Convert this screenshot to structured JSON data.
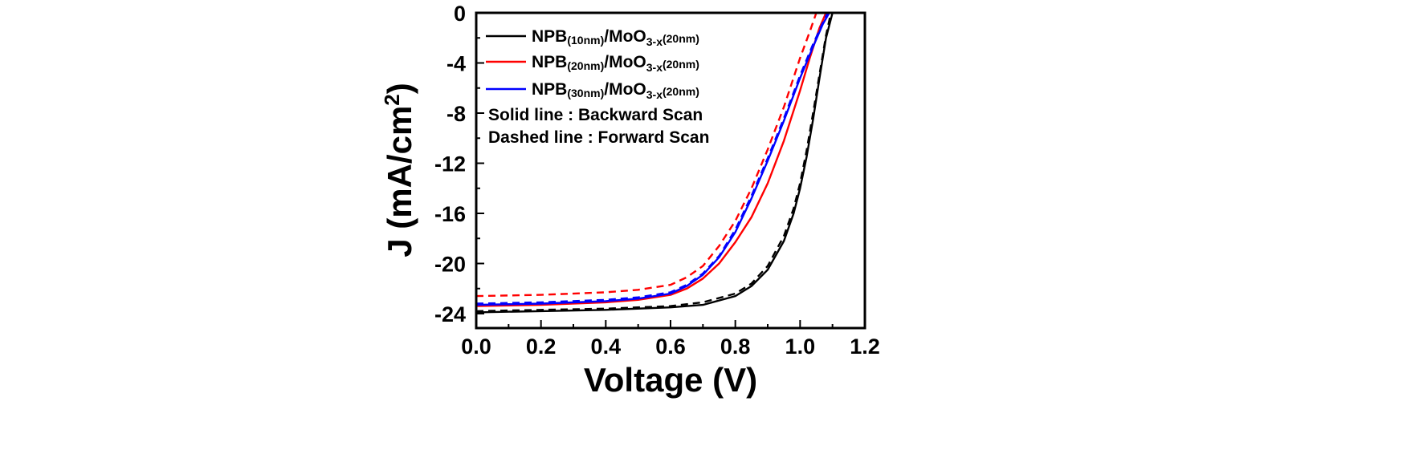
{
  "chart_data": {
    "type": "line",
    "xlabel": "Voltage (V)",
    "ylabel": {
      "main": "J (mA/cm",
      "sup": "2",
      "close": ")"
    },
    "xlim": [
      0.0,
      1.2
    ],
    "ylim": [
      -24.0,
      0.0
    ],
    "x_ticks": [
      "0.0",
      "0.2",
      "0.4",
      "0.6",
      "0.8",
      "1.0",
      "1.2"
    ],
    "y_ticks": [
      "0",
      "-4",
      "-8",
      "-12",
      "-16",
      "-20",
      "-24"
    ],
    "grid": false,
    "legend_position": "top-left",
    "notes": [
      "Solid line : Backward Scan",
      "Dashed line : Forward Scan"
    ],
    "series": [
      {
        "name": "NPB(10nm)/MoO3-x(20nm)",
        "label": {
          "a": "NPB",
          "b": "(10nm)",
          "c": "/MoO",
          "d": "3-x",
          "e": "(20nm)"
        },
        "color": "#000000",
        "backward": {
          "x": [
            0.0,
            0.2,
            0.4,
            0.6,
            0.7,
            0.8,
            0.85,
            0.9,
            0.95,
            0.98,
            1.0,
            1.02,
            1.04,
            1.06,
            1.08,
            1.1
          ],
          "y": [
            -23.9,
            -23.8,
            -23.7,
            -23.5,
            -23.3,
            -22.6,
            -21.8,
            -20.5,
            -18.2,
            -16.0,
            -14.0,
            -11.5,
            -8.5,
            -5.2,
            -2.0,
            0.0
          ]
        },
        "forward": {
          "x": [
            0.0,
            0.2,
            0.4,
            0.6,
            0.7,
            0.8,
            0.85,
            0.9,
            0.95,
            0.98,
            1.0,
            1.02,
            1.04,
            1.06,
            1.08,
            1.095
          ],
          "y": [
            -23.8,
            -23.7,
            -23.6,
            -23.4,
            -23.1,
            -22.4,
            -21.6,
            -20.2,
            -17.8,
            -15.6,
            -13.6,
            -11.0,
            -8.0,
            -4.9,
            -1.8,
            0.0
          ]
        }
      },
      {
        "name": "NPB(20nm)/MoO3-x(20nm)",
        "label": {
          "a": "NPB",
          "b": "(20nm)",
          "c": "/MoO",
          "d": "3-x",
          "e": "(20nm)"
        },
        "color": "#ff0000",
        "backward": {
          "x": [
            0.0,
            0.2,
            0.4,
            0.5,
            0.6,
            0.65,
            0.7,
            0.75,
            0.8,
            0.85,
            0.9,
            0.95,
            1.0,
            1.03,
            1.06,
            1.08
          ],
          "y": [
            -23.4,
            -23.3,
            -23.1,
            -22.9,
            -22.5,
            -22.0,
            -21.2,
            -20.0,
            -18.3,
            -16.3,
            -13.6,
            -10.2,
            -6.2,
            -3.6,
            -1.2,
            0.0
          ]
        },
        "forward": {
          "x": [
            0.0,
            0.2,
            0.4,
            0.5,
            0.6,
            0.65,
            0.7,
            0.75,
            0.8,
            0.85,
            0.9,
            0.95,
            1.0,
            1.03,
            1.05
          ],
          "y": [
            -22.6,
            -22.5,
            -22.3,
            -22.1,
            -21.7,
            -21.1,
            -20.2,
            -18.6,
            -16.6,
            -14.0,
            -10.9,
            -7.5,
            -3.6,
            -1.5,
            0.0
          ]
        }
      },
      {
        "name": "NPB(30nm)/MoO3-x(20nm)",
        "label": {
          "a": "NPB",
          "b": "(30nm)",
          "c": "/MoO",
          "d": "3-x",
          "e": "(20nm)"
        },
        "color": "#0000ff",
        "backward": {
          "x": [
            0.0,
            0.2,
            0.4,
            0.5,
            0.6,
            0.65,
            0.7,
            0.75,
            0.8,
            0.85,
            0.9,
            0.95,
            1.0,
            1.04,
            1.07,
            1.09
          ],
          "y": [
            -23.3,
            -23.2,
            -23.0,
            -22.8,
            -22.4,
            -21.8,
            -20.9,
            -19.5,
            -17.5,
            -14.8,
            -11.8,
            -8.6,
            -5.2,
            -2.7,
            -0.9,
            0.0
          ]
        },
        "forward": {
          "x": [
            0.0,
            0.2,
            0.4,
            0.5,
            0.6,
            0.65,
            0.7,
            0.75,
            0.8,
            0.85,
            0.9,
            0.95,
            1.0,
            1.04,
            1.07,
            1.085
          ],
          "y": [
            -23.2,
            -23.1,
            -22.9,
            -22.7,
            -22.3,
            -21.7,
            -20.8,
            -19.4,
            -17.3,
            -14.6,
            -11.6,
            -8.4,
            -5.0,
            -2.5,
            -0.8,
            0.0
          ]
        }
      }
    ]
  }
}
